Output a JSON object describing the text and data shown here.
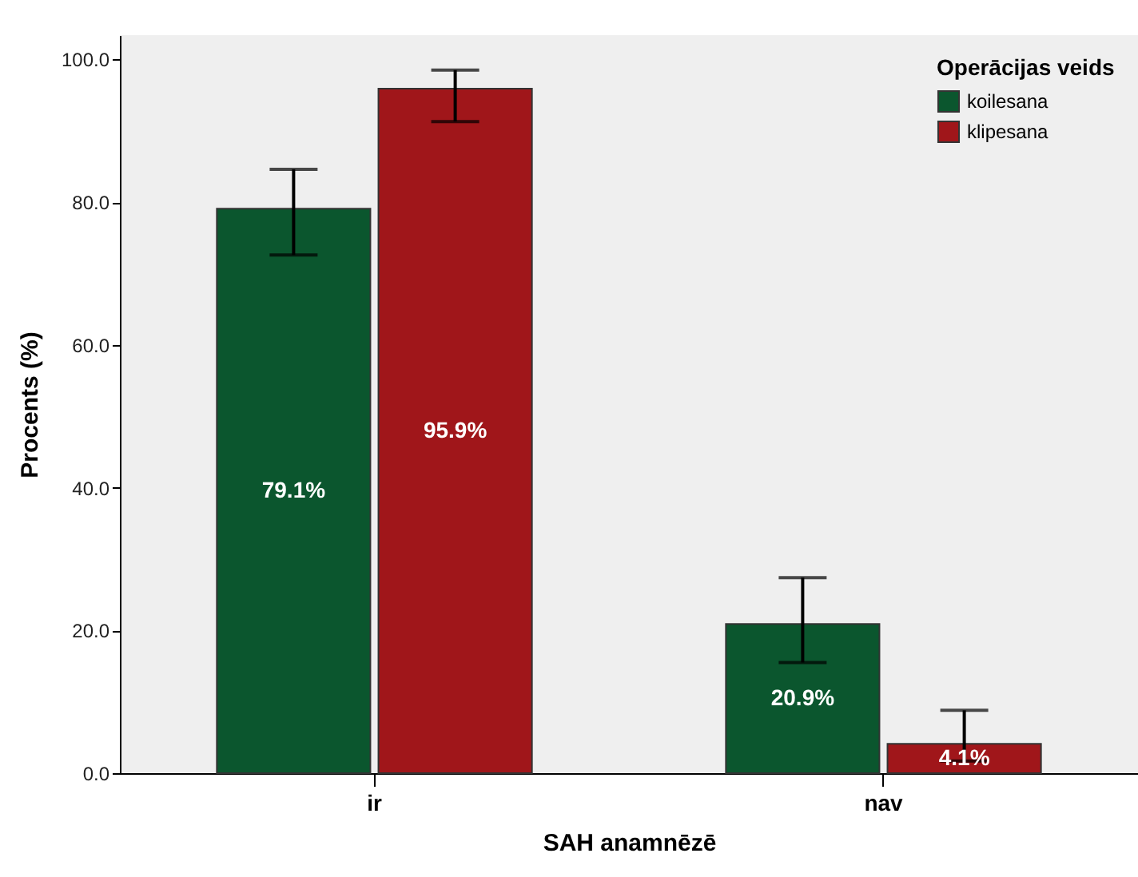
{
  "chart_data": {
    "type": "bar",
    "xlabel": "SAH anamnēzē",
    "ylabel": "Procents (%)",
    "legend_title": "Operācijas veids",
    "categories": [
      "ir",
      "nav"
    ],
    "series": [
      {
        "name": "koilesana",
        "color": "#0b562e",
        "values": [
          79.1,
          20.9
        ],
        "value_labels": [
          "79.1%",
          "20.9%"
        ],
        "errors": [
          [
            72.6,
            84.6
          ],
          [
            15.5,
            27.4
          ]
        ]
      },
      {
        "name": "klipesana",
        "color": "#a0161a",
        "values": [
          95.9,
          4.1
        ],
        "value_labels": [
          "95.9%",
          "4.1%"
        ],
        "errors": [
          [
            91.3,
            98.5
          ],
          [
            1.7,
            8.8
          ]
        ]
      }
    ],
    "ylim": [
      0,
      103.4
    ],
    "yticks": [
      {
        "value": 0,
        "label": "0.0"
      },
      {
        "value": 20,
        "label": "20.0"
      },
      {
        "value": 40,
        "label": "40.0"
      },
      {
        "value": 60,
        "label": "60.0"
      },
      {
        "value": 80,
        "label": "80.0"
      },
      {
        "value": 100,
        "label": "100.0"
      }
    ],
    "legend": "top right",
    "grid": false
  }
}
